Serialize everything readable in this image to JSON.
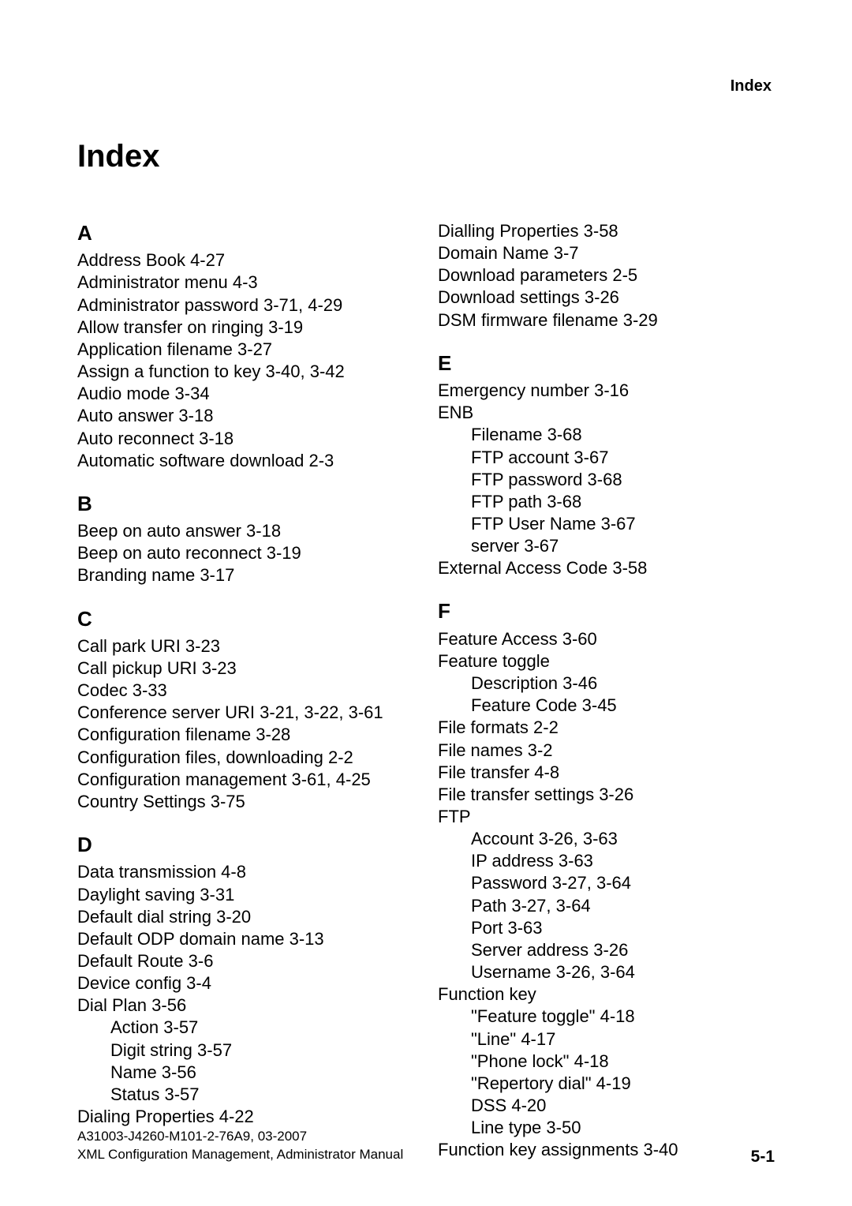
{
  "running_head": "Index",
  "title": "Index",
  "left": {
    "A": {
      "letter": "A",
      "entries": [
        {
          "t": "Address Book  4-27"
        },
        {
          "t": "Administrator menu  4-3"
        },
        {
          "t": "Administrator password  3-71, 4-29"
        },
        {
          "t": "Allow transfer on ringing  3-19"
        },
        {
          "t": "Application filename  3-27"
        },
        {
          "t": "Assign a function to key  3-40, 3-42"
        },
        {
          "t": "Audio mode  3-34"
        },
        {
          "t": "Auto answer  3-18"
        },
        {
          "t": "Auto reconnect  3-18"
        },
        {
          "t": "Automatic software download  2-3"
        }
      ]
    },
    "B": {
      "letter": "B",
      "entries": [
        {
          "t": "Beep on auto answer  3-18"
        },
        {
          "t": "Beep on auto reconnect  3-19"
        },
        {
          "t": "Branding name  3-17"
        }
      ]
    },
    "C": {
      "letter": "C",
      "entries": [
        {
          "t": "Call park URI  3-23"
        },
        {
          "t": "Call pickup URI  3-23"
        },
        {
          "t": "Codec  3-33"
        },
        {
          "t": "Conference server URI  3-21, 3-22, 3-61"
        },
        {
          "t": "Configuration filename  3-28"
        },
        {
          "t": "Configuration files, downloading  2-2"
        },
        {
          "t": "Configuration management  3-61, 4-25"
        },
        {
          "t": "Country Settings  3-75"
        }
      ]
    },
    "D": {
      "letter": "D",
      "entries": [
        {
          "t": "Data transmission  4-8"
        },
        {
          "t": "Daylight saving  3-31"
        },
        {
          "t": "Default dial string  3-20"
        },
        {
          "t": "Default ODP domain name  3-13"
        },
        {
          "t": "Default Route  3-6"
        },
        {
          "t": "Device config  3-4"
        },
        {
          "t": "Dial Plan  3-56"
        },
        {
          "t": "Action  3-57",
          "sub": true
        },
        {
          "t": "Digit string  3-57",
          "sub": true
        },
        {
          "t": "Name  3-56",
          "sub": true
        },
        {
          "t": "Status  3-57",
          "sub": true
        },
        {
          "t": "Dialing Properties  4-22"
        }
      ]
    }
  },
  "right": {
    "Dcont": {
      "entries": [
        {
          "t": "Dialling Properties  3-58"
        },
        {
          "t": "Domain Name  3-7"
        },
        {
          "t": "Download parameters  2-5"
        },
        {
          "t": "Download settings  3-26"
        },
        {
          "t": "DSM firmware filename  3-29"
        }
      ]
    },
    "E": {
      "letter": "E",
      "entries": [
        {
          "t": "Emergency number  3-16"
        },
        {
          "t": "ENB"
        },
        {
          "t": "Filename  3-68",
          "sub": true
        },
        {
          "t": "FTP account  3-67",
          "sub": true
        },
        {
          "t": "FTP password  3-68",
          "sub": true
        },
        {
          "t": "FTP path  3-68",
          "sub": true
        },
        {
          "t": "FTP User Name  3-67",
          "sub": true
        },
        {
          "t": "server  3-67",
          "sub": true
        },
        {
          "t": "External Access Code  3-58"
        }
      ]
    },
    "F": {
      "letter": "F",
      "entries": [
        {
          "t": "Feature Access  3-60"
        },
        {
          "t": "Feature toggle"
        },
        {
          "t": "Description  3-46",
          "sub": true
        },
        {
          "t": "Feature Code  3-45",
          "sub": true
        },
        {
          "t": "File formats  2-2"
        },
        {
          "t": "File names  3-2"
        },
        {
          "t": "File transfer  4-8"
        },
        {
          "t": "File transfer settings  3-26"
        },
        {
          "t": "FTP"
        },
        {
          "t": "Account  3-26, 3-63",
          "sub": true
        },
        {
          "t": "IP address  3-63",
          "sub": true
        },
        {
          "t": "Password  3-27, 3-64",
          "sub": true
        },
        {
          "t": "Path  3-27, 3-64",
          "sub": true
        },
        {
          "t": "Port  3-63",
          "sub": true
        },
        {
          "t": "Server address  3-26",
          "sub": true
        },
        {
          "t": "Username  3-26, 3-64",
          "sub": true
        },
        {
          "t": "Function key"
        },
        {
          "t": "\"Feature toggle\"  4-18",
          "sub": true
        },
        {
          "t": "\"Line\"  4-17",
          "sub": true
        },
        {
          "t": "\"Phone lock\"  4-18",
          "sub": true
        },
        {
          "t": "\"Repertory dial\"  4-19",
          "sub": true
        },
        {
          "t": "DSS  4-20",
          "sub": true
        },
        {
          "t": "Line type  3-50",
          "sub": true
        },
        {
          "t": "Function key assignments  3-40"
        }
      ]
    }
  },
  "footer": {
    "line1": "A31003-J4260-M101-2-76A9, 03-2007",
    "line2": "XML Configuration Management, Administrator Manual",
    "page": "5-1"
  }
}
